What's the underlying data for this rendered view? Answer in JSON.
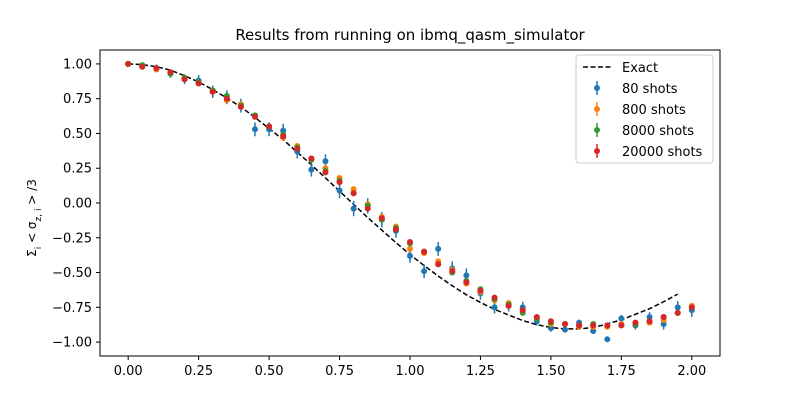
{
  "chart_data": {
    "type": "scatter",
    "title": "Results from running on ibmq_qasm_simulator",
    "xlabel": "",
    "ylabel": "Σ_i < σ_{z,i} > /3",
    "xlim": [
      -0.1,
      2.1
    ],
    "ylim": [
      -1.1,
      1.1
    ],
    "x_ticks": [
      "0.00",
      "0.25",
      "0.50",
      "0.75",
      "1.00",
      "1.25",
      "1.50",
      "1.75",
      "2.00"
    ],
    "y_ticks": [
      "1.00",
      "0.75",
      "0.50",
      "0.25",
      "0.00",
      "−0.25",
      "−0.50",
      "−0.75",
      "−1.00"
    ],
    "grid": false,
    "legend_position": "top-right",
    "exact": {
      "name": "Exact",
      "color": "#000000",
      "x": [
        0.0,
        0.05,
        0.1,
        0.15,
        0.2,
        0.25,
        0.3,
        0.35,
        0.4,
        0.45,
        0.5,
        0.55,
        0.6,
        0.65,
        0.7,
        0.75,
        0.8,
        0.85,
        0.9,
        0.95,
        1.0,
        1.05,
        1.1,
        1.15,
        1.2,
        1.25,
        1.3,
        1.35,
        1.4,
        1.45,
        1.5,
        1.55,
        1.6,
        1.65,
        1.7,
        1.75,
        1.8,
        1.85,
        1.9,
        1.95
      ],
      "y": [
        1.0,
        0.995,
        0.98,
        0.955,
        0.915,
        0.87,
        0.815,
        0.755,
        0.69,
        0.615,
        0.535,
        0.455,
        0.365,
        0.275,
        0.18,
        0.085,
        -0.01,
        -0.105,
        -0.195,
        -0.285,
        -0.37,
        -0.45,
        -0.525,
        -0.595,
        -0.66,
        -0.715,
        -0.765,
        -0.805,
        -0.845,
        -0.875,
        -0.895,
        -0.905,
        -0.905,
        -0.895,
        -0.87,
        -0.84,
        -0.8,
        -0.76,
        -0.71,
        -0.655
      ]
    },
    "x": [
      0.0,
      0.05,
      0.1,
      0.15,
      0.2,
      0.25,
      0.3,
      0.35,
      0.4,
      0.45,
      0.5,
      0.55,
      0.6,
      0.65,
      0.7,
      0.75,
      0.8,
      0.85,
      0.9,
      0.95,
      1.0,
      1.05,
      1.1,
      1.15,
      1.2,
      1.25,
      1.3,
      1.35,
      1.4,
      1.45,
      1.5,
      1.55,
      1.6,
      1.65,
      1.7,
      1.75,
      1.8,
      1.85,
      1.9,
      1.95,
      2.0
    ],
    "series": [
      {
        "name": "80 shots",
        "color": "#1f77b4",
        "values": [
          1.0,
          0.98,
          0.97,
          0.93,
          0.89,
          0.88,
          0.8,
          0.76,
          0.7,
          0.53,
          0.53,
          0.52,
          0.37,
          0.24,
          0.3,
          0.09,
          -0.04,
          -0.02,
          -0.12,
          -0.2,
          -0.38,
          -0.49,
          -0.33,
          -0.47,
          -0.52,
          -0.65,
          -0.75,
          -0.74,
          -0.75,
          -0.85,
          -0.9,
          -0.91,
          -0.86,
          -0.92,
          -0.98,
          -0.83,
          -0.88,
          -0.82,
          -0.87,
          -0.75,
          -0.77
        ],
        "errors": [
          0.01,
          0.02,
          0.025,
          0.03,
          0.035,
          0.04,
          0.045,
          0.05,
          0.05,
          0.05,
          0.05,
          0.05,
          0.05,
          0.05,
          0.05,
          0.055,
          0.055,
          0.055,
          0.055,
          0.05,
          0.05,
          0.05,
          0.05,
          0.05,
          0.05,
          0.045,
          0.045,
          0.04,
          0.04,
          0.03,
          0.025,
          0.02,
          0.02,
          0.02,
          0.02,
          0.025,
          0.03,
          0.035,
          0.04,
          0.045,
          0.05
        ]
      },
      {
        "name": "800 shots",
        "color": "#ff7f0e",
        "values": [
          1.0,
          0.99,
          0.96,
          0.94,
          0.9,
          0.86,
          0.81,
          0.74,
          0.71,
          0.63,
          0.55,
          0.47,
          0.41,
          0.32,
          0.25,
          0.18,
          0.1,
          -0.01,
          -0.1,
          -0.17,
          -0.33,
          -0.36,
          -0.42,
          -0.48,
          -0.58,
          -0.64,
          -0.7,
          -0.72,
          -0.77,
          -0.83,
          -0.87,
          -0.87,
          -0.89,
          -0.89,
          -0.89,
          -0.87,
          -0.86,
          -0.86,
          -0.84,
          -0.79,
          -0.74
        ],
        "errors": [
          0.003,
          0.005,
          0.007,
          0.009,
          0.01,
          0.012,
          0.013,
          0.015,
          0.016,
          0.017,
          0.017,
          0.018,
          0.018,
          0.018,
          0.018,
          0.018,
          0.018,
          0.018,
          0.018,
          0.018,
          0.017,
          0.017,
          0.016,
          0.015,
          0.015,
          0.014,
          0.013,
          0.012,
          0.012,
          0.011,
          0.01,
          0.009,
          0.009,
          0.009,
          0.009,
          0.01,
          0.011,
          0.012,
          0.013,
          0.014,
          0.015
        ]
      },
      {
        "name": "8000 shots",
        "color": "#2ca02c",
        "values": [
          1.0,
          0.99,
          0.97,
          0.93,
          0.9,
          0.87,
          0.81,
          0.77,
          0.7,
          0.63,
          0.55,
          0.49,
          0.4,
          0.31,
          0.23,
          0.16,
          0.07,
          -0.02,
          -0.12,
          -0.18,
          -0.29,
          -0.35,
          -0.44,
          -0.5,
          -0.56,
          -0.62,
          -0.69,
          -0.73,
          -0.79,
          -0.83,
          -0.86,
          -0.87,
          -0.88,
          -0.87,
          -0.88,
          -0.88,
          -0.87,
          -0.85,
          -0.82,
          -0.79,
          -0.75
        ],
        "errors": [
          0.001,
          0.002,
          0.002,
          0.003,
          0.003,
          0.004,
          0.004,
          0.005,
          0.005,
          0.005,
          0.005,
          0.006,
          0.006,
          0.006,
          0.006,
          0.006,
          0.006,
          0.006,
          0.006,
          0.006,
          0.005,
          0.005,
          0.005,
          0.005,
          0.005,
          0.004,
          0.004,
          0.004,
          0.004,
          0.003,
          0.003,
          0.003,
          0.003,
          0.003,
          0.003,
          0.003,
          0.003,
          0.004,
          0.004,
          0.004,
          0.005
        ]
      },
      {
        "name": "20000 shots",
        "color": "#d62728",
        "values": [
          1.0,
          0.98,
          0.97,
          0.94,
          0.89,
          0.86,
          0.8,
          0.75,
          0.69,
          0.62,
          0.55,
          0.48,
          0.39,
          0.32,
          0.22,
          0.15,
          0.07,
          -0.04,
          -0.11,
          -0.19,
          -0.28,
          -0.35,
          -0.44,
          -0.49,
          -0.57,
          -0.63,
          -0.68,
          -0.74,
          -0.77,
          -0.82,
          -0.85,
          -0.87,
          -0.88,
          -0.88,
          -0.88,
          -0.88,
          -0.86,
          -0.85,
          -0.82,
          -0.79,
          -0.75
        ],
        "errors": [
          0.001,
          0.001,
          0.002,
          0.002,
          0.002,
          0.003,
          0.003,
          0.003,
          0.003,
          0.003,
          0.004,
          0.004,
          0.004,
          0.004,
          0.004,
          0.004,
          0.004,
          0.004,
          0.004,
          0.004,
          0.004,
          0.003,
          0.003,
          0.003,
          0.003,
          0.003,
          0.003,
          0.003,
          0.002,
          0.002,
          0.002,
          0.002,
          0.002,
          0.002,
          0.002,
          0.002,
          0.002,
          0.002,
          0.003,
          0.003,
          0.003
        ]
      }
    ]
  }
}
